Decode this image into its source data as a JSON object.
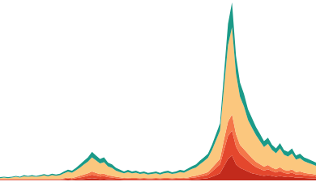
{
  "chart_data": {
    "type": "area",
    "stacked": true,
    "tick_labels": false,
    "series": [
      {
        "color": "#c22a1c",
        "values": [
          0.2,
          0.2,
          0.2,
          0.2,
          0.2,
          0.2,
          0.2,
          0.2,
          0.2,
          0.2,
          0.2,
          0.2,
          0.2,
          0.2,
          0.2,
          0.2,
          0.3,
          0.4,
          0.3,
          0.5,
          0.6,
          0.8,
          1,
          1.2,
          1,
          0.8,
          0.9,
          0.7,
          0.6,
          0.5,
          0.4,
          0.3,
          0.3,
          0.3,
          0.3,
          0.3,
          0.3,
          0.3,
          0.3,
          0.3,
          0.3,
          0.3,
          0.3,
          0.3,
          0.3,
          0.3,
          0.3,
          0.3,
          0.5,
          0.6,
          0.8,
          1,
          1.2,
          2,
          3,
          4,
          8,
          12,
          14,
          9,
          7,
          6,
          5,
          4,
          3.5,
          3,
          2.5,
          3,
          2.5,
          2,
          2.5,
          2,
          1.8,
          2,
          1.5,
          1.6,
          1.4,
          1.2,
          1.1,
          1
        ]
      },
      {
        "color": "#e4472d",
        "values": [
          0.3,
          0.3,
          0.3,
          0.3,
          0.3,
          0.3,
          0.3,
          0.3,
          0.3,
          0.3,
          0.3,
          0.3,
          0.3,
          0.3,
          0.3,
          0.3,
          0.5,
          0.6,
          0.5,
          0.7,
          1,
          1.3,
          1.6,
          2,
          1.7,
          1.4,
          1.5,
          1.1,
          1,
          0.8,
          0.7,
          0.6,
          0.7,
          0.6,
          0.6,
          0.5,
          0.6,
          0.5,
          0.5,
          0.6,
          0.5,
          0.6,
          0.6,
          0.5,
          0.6,
          0.7,
          0.6,
          0.8,
          1,
          1.1,
          1.4,
          1.6,
          2,
          3,
          4,
          5,
          9,
          13,
          14,
          10,
          8,
          7,
          6,
          5,
          4,
          3.5,
          3,
          3.2,
          2.7,
          2.4,
          2.8,
          2.2,
          2,
          2.3,
          1.8,
          1.9,
          1.6,
          1.5,
          1.4,
          1.2
        ]
      },
      {
        "color": "#f4774a",
        "values": [
          0.3,
          0.3,
          0.3,
          0.3,
          0.3,
          0.3,
          0.3,
          0.3,
          0.3,
          0.3,
          0.3,
          0.3,
          0.3,
          0.3,
          0.3,
          0.3,
          0.5,
          0.6,
          0.5,
          0.7,
          1,
          1.2,
          1.4,
          1.8,
          1.5,
          1.3,
          1.4,
          1,
          0.9,
          0.7,
          0.6,
          0.5,
          0.5,
          0.5,
          0.5,
          0.5,
          0.5,
          0.5,
          0.5,
          0.5,
          0.5,
          0.5,
          0.5,
          0.5,
          0.5,
          0.5,
          0.5,
          0.5,
          0.8,
          0.9,
          1.1,
          1.3,
          1.5,
          2,
          2.5,
          3,
          6,
          8,
          9,
          7,
          5,
          4.5,
          4,
          3.5,
          3,
          2.6,
          2.2,
          2.4,
          2,
          1.8,
          2.1,
          1.7,
          1.6,
          1.8,
          1.4,
          1.5,
          1.3,
          1.2,
          1.1,
          1
        ]
      },
      {
        "color": "#fbc77e",
        "values": [
          0.5,
          0.8,
          0.5,
          0.8,
          1.2,
          0.8,
          1.5,
          1.2,
          1.5,
          1.2,
          1.5,
          2,
          1.5,
          2.2,
          1.8,
          2.2,
          2.7,
          3.3,
          3,
          3.8,
          4.6,
          5.7,
          6.6,
          7.9,
          7,
          6,
          6.4,
          5,
          4.5,
          3.5,
          3,
          2.6,
          3.2,
          2.6,
          2.9,
          2.3,
          2.6,
          2,
          2.3,
          2.6,
          2,
          2.6,
          2.9,
          2.3,
          2.6,
          3.2,
          2.9,
          3.8,
          4.2,
          4.7,
          5.8,
          6.9,
          8,
          10,
          13,
          16,
          29,
          43,
          49,
          34,
          27,
          24,
          19,
          17,
          15,
          13,
          11,
          12,
          10,
          9,
          10.5,
          8.5,
          8,
          9,
          7,
          7.5,
          6.5,
          6,
          5.5,
          5
        ]
      },
      {
        "color": "#1b9a88",
        "values": [
          0.5,
          0.5,
          0.5,
          0.5,
          0.5,
          0.5,
          0.7,
          0.5,
          0.7,
          0.5,
          0.7,
          0.7,
          0.7,
          0.8,
          0.7,
          0.8,
          1,
          1.1,
          1.2,
          1.3,
          1.8,
          2,
          2.4,
          3.1,
          2.8,
          2.5,
          2.8,
          2.2,
          2,
          1.5,
          1.3,
          1,
          1.2,
          1,
          1.1,
          0.9,
          1,
          0.9,
          0.9,
          1,
          0.9,
          1,
          1.1,
          0.9,
          1,
          1.2,
          1.1,
          1.3,
          1.5,
          1.7,
          2,
          2.2,
          2.3,
          3,
          3.5,
          4,
          8,
          12,
          14,
          10,
          8,
          7,
          6,
          5.5,
          4.5,
          4,
          3.3,
          3.4,
          2.8,
          2.8,
          3,
          2.6,
          2.6,
          2.9,
          2.3,
          2.5,
          2.2,
          2.1,
          1.9,
          1.8
        ]
      }
    ]
  }
}
